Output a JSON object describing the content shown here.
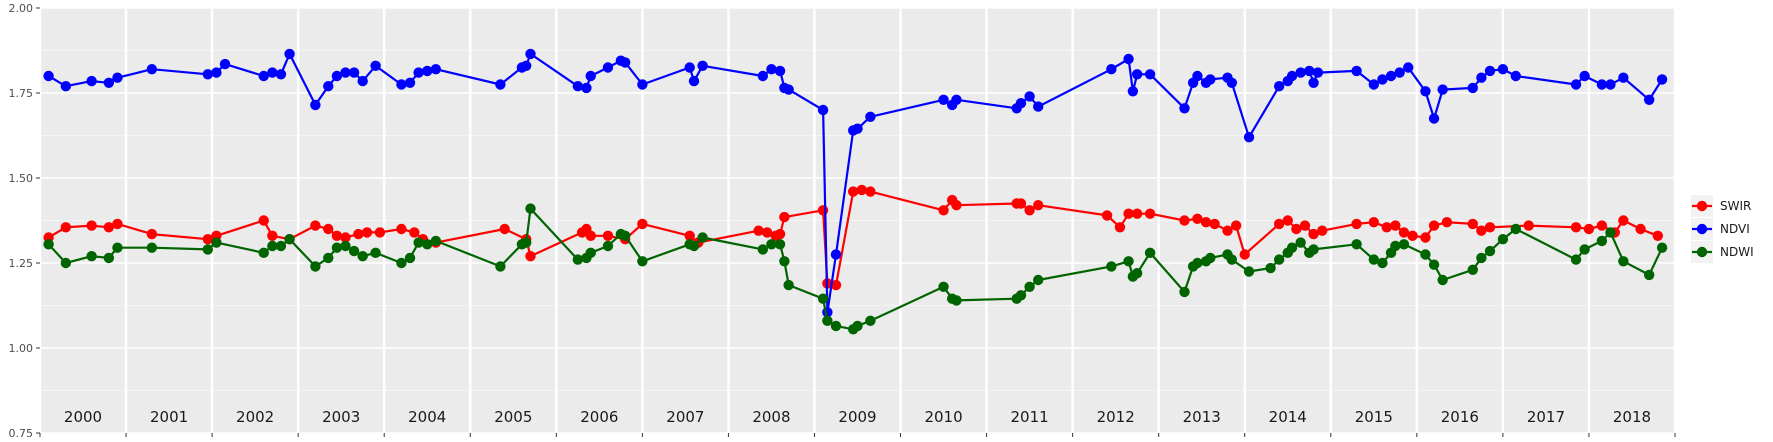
{
  "chart_data": {
    "type": "line",
    "title": "",
    "xlabel": "",
    "ylabel": "",
    "ylim": [
      0.75,
      2.0
    ],
    "xlim": [
      2000,
      2019
    ],
    "y_ticks": [
      "0.75",
      "1.00",
      "1.25",
      "1.50",
      "1.75",
      "2.00"
    ],
    "year_labels": [
      "2000",
      "2001",
      "2002",
      "2003",
      "2004",
      "2005",
      "2006",
      "2007",
      "2008",
      "2009",
      "2010",
      "2011",
      "2012",
      "2013",
      "2014",
      "2015",
      "2016",
      "2017",
      "2018"
    ],
    "grid": true,
    "legend_position": "right",
    "series": [
      {
        "name": "SWIR",
        "color": "#ff0000",
        "points": [
          [
            2000.1,
            1.325
          ],
          [
            2000.3,
            1.355
          ],
          [
            2000.6,
            1.36
          ],
          [
            2000.8,
            1.355
          ],
          [
            2000.9,
            1.365
          ],
          [
            2001.3,
            1.335
          ],
          [
            2001.95,
            1.32
          ],
          [
            2002.05,
            1.33
          ],
          [
            2002.6,
            1.375
          ],
          [
            2002.7,
            1.33
          ],
          [
            2002.9,
            1.32
          ],
          [
            2003.2,
            1.36
          ],
          [
            2003.35,
            1.35
          ],
          [
            2003.45,
            1.33
          ],
          [
            2003.55,
            1.325
          ],
          [
            2003.7,
            1.335
          ],
          [
            2003.8,
            1.34
          ],
          [
            2003.95,
            1.34
          ],
          [
            2004.2,
            1.35
          ],
          [
            2004.35,
            1.34
          ],
          [
            2004.45,
            1.32
          ],
          [
            2004.6,
            1.31
          ],
          [
            2005.4,
            1.35
          ],
          [
            2005.65,
            1.32
          ],
          [
            2005.7,
            1.27
          ],
          [
            2006.3,
            1.34
          ],
          [
            2006.35,
            1.35
          ],
          [
            2006.4,
            1.33
          ],
          [
            2006.6,
            1.33
          ],
          [
            2006.8,
            1.32
          ],
          [
            2007.0,
            1.365
          ],
          [
            2007.55,
            1.33
          ],
          [
            2007.65,
            1.31
          ],
          [
            2008.35,
            1.345
          ],
          [
            2008.45,
            1.34
          ],
          [
            2008.55,
            1.33
          ],
          [
            2008.6,
            1.335
          ],
          [
            2008.65,
            1.385
          ],
          [
            2009.1,
            1.405
          ],
          [
            2009.15,
            1.19
          ],
          [
            2009.25,
            1.185
          ],
          [
            2009.45,
            1.46
          ],
          [
            2009.55,
            1.465
          ],
          [
            2009.65,
            1.46
          ],
          [
            2010.5,
            1.405
          ],
          [
            2010.6,
            1.435
          ],
          [
            2010.65,
            1.42
          ],
          [
            2011.35,
            1.425
          ],
          [
            2011.4,
            1.425
          ],
          [
            2011.5,
            1.405
          ],
          [
            2011.6,
            1.42
          ],
          [
            2012.4,
            1.39
          ],
          [
            2012.55,
            1.355
          ],
          [
            2012.65,
            1.395
          ],
          [
            2012.75,
            1.395
          ],
          [
            2012.9,
            1.395
          ],
          [
            2013.3,
            1.375
          ],
          [
            2013.45,
            1.38
          ],
          [
            2013.55,
            1.37
          ],
          [
            2013.65,
            1.365
          ],
          [
            2013.8,
            1.345
          ],
          [
            2013.9,
            1.36
          ],
          [
            2014.0,
            1.275
          ],
          [
            2014.4,
            1.365
          ],
          [
            2014.5,
            1.375
          ],
          [
            2014.6,
            1.35
          ],
          [
            2014.7,
            1.36
          ],
          [
            2014.8,
            1.335
          ],
          [
            2014.9,
            1.345
          ],
          [
            2015.3,
            1.365
          ],
          [
            2015.5,
            1.37
          ],
          [
            2015.65,
            1.355
          ],
          [
            2015.75,
            1.36
          ],
          [
            2015.85,
            1.34
          ],
          [
            2015.95,
            1.33
          ],
          [
            2016.1,
            1.325
          ],
          [
            2016.2,
            1.36
          ],
          [
            2016.35,
            1.37
          ],
          [
            2016.65,
            1.365
          ],
          [
            2016.75,
            1.345
          ],
          [
            2016.85,
            1.355
          ],
          [
            2017.3,
            1.36
          ],
          [
            2017.85,
            1.355
          ],
          [
            2018.0,
            1.35
          ],
          [
            2018.15,
            1.36
          ],
          [
            2018.3,
            1.34
          ],
          [
            2018.4,
            1.375
          ],
          [
            2018.6,
            1.35
          ],
          [
            2018.8,
            1.33
          ]
        ]
      },
      {
        "name": "NDVI",
        "color": "#0000ff",
        "points": [
          [
            2000.1,
            1.8
          ],
          [
            2000.3,
            1.77
          ],
          [
            2000.6,
            1.785
          ],
          [
            2000.8,
            1.78
          ],
          [
            2000.9,
            1.795
          ],
          [
            2001.3,
            1.82
          ],
          [
            2001.95,
            1.805
          ],
          [
            2002.05,
            1.81
          ],
          [
            2002.15,
            1.835
          ],
          [
            2002.6,
            1.8
          ],
          [
            2002.7,
            1.81
          ],
          [
            2002.8,
            1.805
          ],
          [
            2002.9,
            1.865
          ],
          [
            2003.2,
            1.715
          ],
          [
            2003.35,
            1.77
          ],
          [
            2003.45,
            1.8
          ],
          [
            2003.55,
            1.81
          ],
          [
            2003.65,
            1.81
          ],
          [
            2003.75,
            1.785
          ],
          [
            2003.9,
            1.83
          ],
          [
            2004.2,
            1.775
          ],
          [
            2004.3,
            1.78
          ],
          [
            2004.4,
            1.81
          ],
          [
            2004.5,
            1.815
          ],
          [
            2004.6,
            1.82
          ],
          [
            2005.35,
            1.775
          ],
          [
            2005.6,
            1.825
          ],
          [
            2005.65,
            1.83
          ],
          [
            2005.7,
            1.865
          ],
          [
            2006.25,
            1.77
          ],
          [
            2006.35,
            1.765
          ],
          [
            2006.4,
            1.8
          ],
          [
            2006.6,
            1.825
          ],
          [
            2006.75,
            1.845
          ],
          [
            2006.8,
            1.84
          ],
          [
            2007.0,
            1.775
          ],
          [
            2007.55,
            1.825
          ],
          [
            2007.6,
            1.785
          ],
          [
            2007.7,
            1.83
          ],
          [
            2008.4,
            1.8
          ],
          [
            2008.5,
            1.82
          ],
          [
            2008.6,
            1.815
          ],
          [
            2008.65,
            1.765
          ],
          [
            2008.7,
            1.76
          ],
          [
            2009.1,
            1.7
          ],
          [
            2009.15,
            1.105
          ],
          [
            2009.25,
            1.275
          ],
          [
            2009.45,
            1.64
          ],
          [
            2009.5,
            1.645
          ],
          [
            2009.65,
            1.68
          ],
          [
            2010.5,
            1.73
          ],
          [
            2010.6,
            1.715
          ],
          [
            2010.65,
            1.73
          ],
          [
            2011.35,
            1.705
          ],
          [
            2011.4,
            1.72
          ],
          [
            2011.5,
            1.74
          ],
          [
            2011.6,
            1.71
          ],
          [
            2012.45,
            1.82
          ],
          [
            2012.65,
            1.85
          ],
          [
            2012.7,
            1.755
          ],
          [
            2012.75,
            1.805
          ],
          [
            2012.9,
            1.805
          ],
          [
            2013.3,
            1.705
          ],
          [
            2013.4,
            1.78
          ],
          [
            2013.45,
            1.8
          ],
          [
            2013.55,
            1.78
          ],
          [
            2013.6,
            1.79
          ],
          [
            2013.8,
            1.795
          ],
          [
            2013.85,
            1.78
          ],
          [
            2014.05,
            1.62
          ],
          [
            2014.4,
            1.77
          ],
          [
            2014.5,
            1.785
          ],
          [
            2014.55,
            1.8
          ],
          [
            2014.65,
            1.81
          ],
          [
            2014.75,
            1.815
          ],
          [
            2014.8,
            1.78
          ],
          [
            2014.85,
            1.81
          ],
          [
            2015.3,
            1.815
          ],
          [
            2015.5,
            1.775
          ],
          [
            2015.6,
            1.79
          ],
          [
            2015.7,
            1.8
          ],
          [
            2015.8,
            1.81
          ],
          [
            2015.9,
            1.825
          ],
          [
            2016.1,
            1.755
          ],
          [
            2016.2,
            1.675
          ],
          [
            2016.3,
            1.76
          ],
          [
            2016.65,
            1.765
          ],
          [
            2016.75,
            1.795
          ],
          [
            2016.85,
            1.815
          ],
          [
            2017.0,
            1.82
          ],
          [
            2017.15,
            1.8
          ],
          [
            2017.85,
            1.775
          ],
          [
            2017.95,
            1.8
          ],
          [
            2018.15,
            1.775
          ],
          [
            2018.25,
            1.775
          ],
          [
            2018.4,
            1.795
          ],
          [
            2018.7,
            1.73
          ],
          [
            2018.85,
            1.79
          ]
        ]
      },
      {
        "name": "NDWI",
        "color": "#006400",
        "points": [
          [
            2000.1,
            1.305
          ],
          [
            2000.3,
            1.25
          ],
          [
            2000.6,
            1.27
          ],
          [
            2000.8,
            1.265
          ],
          [
            2000.9,
            1.295
          ],
          [
            2001.3,
            1.295
          ],
          [
            2001.95,
            1.29
          ],
          [
            2002.05,
            1.31
          ],
          [
            2002.6,
            1.28
          ],
          [
            2002.7,
            1.3
          ],
          [
            2002.8,
            1.3
          ],
          [
            2002.9,
            1.32
          ],
          [
            2003.2,
            1.24
          ],
          [
            2003.35,
            1.265
          ],
          [
            2003.45,
            1.295
          ],
          [
            2003.55,
            1.3
          ],
          [
            2003.65,
            1.285
          ],
          [
            2003.75,
            1.27
          ],
          [
            2003.9,
            1.28
          ],
          [
            2004.2,
            1.25
          ],
          [
            2004.3,
            1.265
          ],
          [
            2004.4,
            1.31
          ],
          [
            2004.5,
            1.305
          ],
          [
            2004.6,
            1.315
          ],
          [
            2005.35,
            1.24
          ],
          [
            2005.6,
            1.305
          ],
          [
            2005.65,
            1.31
          ],
          [
            2005.7,
            1.41
          ],
          [
            2006.25,
            1.26
          ],
          [
            2006.35,
            1.265
          ],
          [
            2006.4,
            1.28
          ],
          [
            2006.6,
            1.3
          ],
          [
            2006.75,
            1.335
          ],
          [
            2006.8,
            1.33
          ],
          [
            2007.0,
            1.255
          ],
          [
            2007.55,
            1.305
          ],
          [
            2007.6,
            1.3
          ],
          [
            2007.7,
            1.325
          ],
          [
            2008.4,
            1.29
          ],
          [
            2008.5,
            1.305
          ],
          [
            2008.6,
            1.305
          ],
          [
            2008.65,
            1.255
          ],
          [
            2008.7,
            1.185
          ],
          [
            2009.1,
            1.145
          ],
          [
            2009.15,
            1.08
          ],
          [
            2009.25,
            1.065
          ],
          [
            2009.45,
            1.055
          ],
          [
            2009.5,
            1.065
          ],
          [
            2009.65,
            1.08
          ],
          [
            2010.5,
            1.18
          ],
          [
            2010.6,
            1.145
          ],
          [
            2010.65,
            1.14
          ],
          [
            2011.35,
            1.145
          ],
          [
            2011.4,
            1.155
          ],
          [
            2011.5,
            1.18
          ],
          [
            2011.6,
            1.2
          ],
          [
            2012.45,
            1.24
          ],
          [
            2012.65,
            1.255
          ],
          [
            2012.7,
            1.21
          ],
          [
            2012.75,
            1.22
          ],
          [
            2012.9,
            1.28
          ],
          [
            2013.3,
            1.165
          ],
          [
            2013.4,
            1.24
          ],
          [
            2013.45,
            1.25
          ],
          [
            2013.55,
            1.255
          ],
          [
            2013.6,
            1.265
          ],
          [
            2013.8,
            1.275
          ],
          [
            2013.85,
            1.26
          ],
          [
            2014.05,
            1.225
          ],
          [
            2014.3,
            1.235
          ],
          [
            2014.4,
            1.26
          ],
          [
            2014.5,
            1.28
          ],
          [
            2014.55,
            1.295
          ],
          [
            2014.65,
            1.31
          ],
          [
            2014.75,
            1.28
          ],
          [
            2014.8,
            1.29
          ],
          [
            2015.3,
            1.305
          ],
          [
            2015.5,
            1.26
          ],
          [
            2015.6,
            1.25
          ],
          [
            2015.7,
            1.28
          ],
          [
            2015.75,
            1.3
          ],
          [
            2015.85,
            1.305
          ],
          [
            2016.1,
            1.275
          ],
          [
            2016.2,
            1.245
          ],
          [
            2016.3,
            1.2
          ],
          [
            2016.65,
            1.23
          ],
          [
            2016.75,
            1.265
          ],
          [
            2016.85,
            1.285
          ],
          [
            2017.0,
            1.32
          ],
          [
            2017.15,
            1.35
          ],
          [
            2017.85,
            1.26
          ],
          [
            2017.95,
            1.29
          ],
          [
            2018.15,
            1.315
          ],
          [
            2018.25,
            1.34
          ],
          [
            2018.4,
            1.255
          ],
          [
            2018.7,
            1.215
          ],
          [
            2018.85,
            1.295
          ]
        ]
      }
    ]
  }
}
